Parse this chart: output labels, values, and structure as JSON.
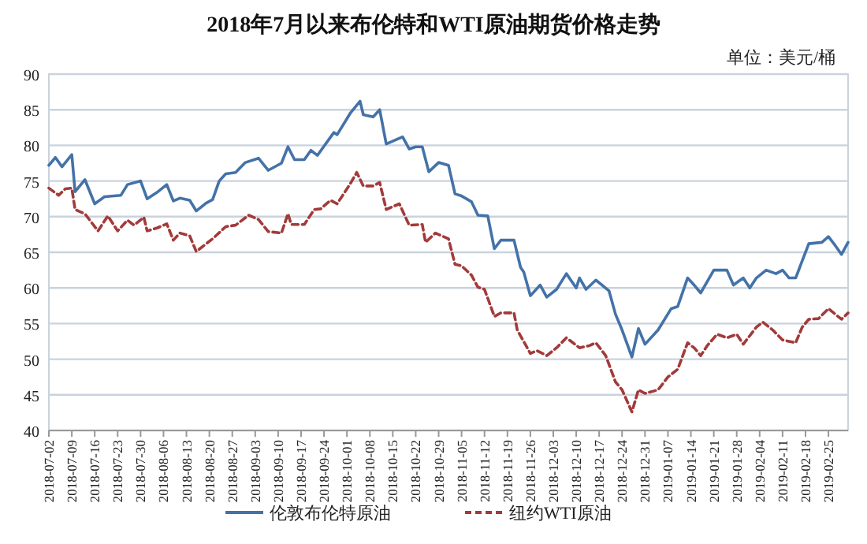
{
  "chart_data": {
    "type": "line",
    "title": "2018年7月以来布伦特和WTI原油期货价格走势",
    "ylabel": "单位：美元/桶",
    "xlim": [
      "2018-07-02",
      "2019-03-03"
    ],
    "xticks": [
      "2018-07-02",
      "2018-07-09",
      "2018-07-16",
      "2018-07-23",
      "2018-07-30",
      "2018-08-06",
      "2018-08-13",
      "2018-08-20",
      "2018-08-27",
      "2018-09-03",
      "2018-09-10",
      "2018-09-17",
      "2018-09-24",
      "2018-10-01",
      "2018-10-08",
      "2018-10-15",
      "2018-10-22",
      "2018-10-29",
      "2018-11-05",
      "2018-11-12",
      "2018-11-19",
      "2018-11-26",
      "2018-12-03",
      "2018-12-10",
      "2018-12-17",
      "2018-12-24",
      "2018-12-31",
      "2019-01-07",
      "2019-01-14",
      "2019-01-21",
      "2019-01-28",
      "2019-02-04",
      "2019-02-11",
      "2019-02-18",
      "2019-02-25"
    ],
    "ylim": [
      40,
      90
    ],
    "yticks": [
      40,
      45,
      50,
      55,
      60,
      65,
      70,
      75,
      80,
      85,
      90
    ],
    "grid": "y",
    "legend": "bottom",
    "series": [
      {
        "name": "伦敦布伦特原油",
        "color": "#4472a8",
        "line_style": "solid",
        "x": [
          "2018-07-02",
          "2018-07-04",
          "2018-07-06",
          "2018-07-09",
          "2018-07-10",
          "2018-07-13",
          "2018-07-16",
          "2018-07-19",
          "2018-07-24",
          "2018-07-26",
          "2018-07-30",
          "2018-08-01",
          "2018-08-04",
          "2018-08-07",
          "2018-08-09",
          "2018-08-11",
          "2018-08-14",
          "2018-08-16",
          "2018-08-19",
          "2018-08-21",
          "2018-08-23",
          "2018-08-25",
          "2018-08-28",
          "2018-08-31",
          "2018-09-04",
          "2018-09-07",
          "2018-09-11",
          "2018-09-13",
          "2018-09-15",
          "2018-09-18",
          "2018-09-20",
          "2018-09-22",
          "2018-09-27",
          "2018-09-28",
          "2018-10-02",
          "2018-10-05",
          "2018-10-06",
          "2018-10-09",
          "2018-10-11",
          "2018-10-13",
          "2018-10-17",
          "2018-10-18",
          "2018-10-20",
          "2018-10-22",
          "2018-10-24",
          "2018-10-26",
          "2018-10-29",
          "2018-11-01",
          "2018-11-03",
          "2018-11-05",
          "2018-11-08",
          "2018-11-10",
          "2018-11-13",
          "2018-11-15",
          "2018-11-17",
          "2018-11-21",
          "2018-11-23",
          "2018-11-24",
          "2018-11-26",
          "2018-11-29",
          "2018-12-01",
          "2018-12-04",
          "2018-12-07",
          "2018-12-10",
          "2018-12-11",
          "2018-12-13",
          "2018-12-16",
          "2018-12-20",
          "2018-12-22",
          "2018-12-24",
          "2018-12-27",
          "2018-12-29",
          "2018-12-31",
          "2019-01-04",
          "2019-01-08",
          "2019-01-10",
          "2019-01-13",
          "2019-01-15",
          "2019-01-17",
          "2019-01-19",
          "2019-01-21",
          "2019-01-25",
          "2019-01-27",
          "2019-01-30",
          "2019-02-01",
          "2019-02-03",
          "2019-02-06",
          "2019-02-09",
          "2019-02-11",
          "2019-02-13",
          "2019-02-15",
          "2019-02-19",
          "2019-02-23",
          "2019-02-25",
          "2019-02-27",
          "2019-03-01",
          "2019-03-03"
        ],
        "values": [
          77.2,
          78.3,
          77.0,
          78.7,
          73.5,
          75.2,
          71.8,
          72.8,
          73.0,
          74.5,
          75.0,
          72.5,
          73.4,
          74.5,
          72.2,
          72.6,
          72.3,
          70.8,
          71.9,
          72.4,
          75.0,
          76.0,
          76.2,
          77.6,
          78.2,
          76.5,
          77.5,
          79.8,
          78.0,
          78.0,
          79.3,
          78.6,
          81.8,
          81.5,
          84.5,
          86.2,
          84.3,
          84.0,
          85.0,
          80.2,
          81.0,
          81.2,
          79.5,
          79.8,
          79.8,
          76.3,
          77.6,
          77.2,
          73.2,
          72.9,
          72.1,
          70.2,
          70.1,
          65.5,
          66.7,
          66.7,
          62.9,
          62.2,
          58.9,
          60.4,
          58.7,
          59.8,
          62.0,
          60.0,
          61.4,
          59.8,
          61.1,
          59.6,
          56.3,
          54.1,
          50.3,
          54.3,
          52.1,
          54.1,
          57.1,
          57.4,
          61.4,
          60.4,
          59.3,
          60.9,
          62.5,
          62.5,
          60.4,
          61.4,
          60.0,
          61.4,
          62.5,
          62.0,
          62.5,
          61.4,
          61.4,
          66.2,
          66.4,
          67.2,
          66.0,
          64.7,
          66.4
        ]
      },
      {
        "name": "纽约WTI原油",
        "color": "#a33a3a",
        "line_style": "dashed",
        "x": [
          "2018-07-02",
          "2018-07-05",
          "2018-07-07",
          "2018-07-09",
          "2018-07-10",
          "2018-07-13",
          "2018-07-17",
          "2018-07-20",
          "2018-07-23",
          "2018-07-26",
          "2018-07-28",
          "2018-07-31",
          "2018-08-01",
          "2018-08-04",
          "2018-08-07",
          "2018-08-09",
          "2018-08-11",
          "2018-08-14",
          "2018-08-16",
          "2018-08-19",
          "2018-08-21",
          "2018-08-25",
          "2018-08-28",
          "2018-09-01",
          "2018-09-04",
          "2018-09-07",
          "2018-09-11",
          "2018-09-13",
          "2018-09-14",
          "2018-09-18",
          "2018-09-21",
          "2018-09-23",
          "2018-09-26",
          "2018-09-28",
          "2018-10-02",
          "2018-10-04",
          "2018-10-06",
          "2018-10-09",
          "2018-10-11",
          "2018-10-13",
          "2018-10-17",
          "2018-10-20",
          "2018-10-24",
          "2018-10-25",
          "2018-10-28",
          "2018-11-01",
          "2018-11-03",
          "2018-11-05",
          "2018-11-08",
          "2018-11-10",
          "2018-11-12",
          "2018-11-15",
          "2018-11-17",
          "2018-11-21",
          "2018-11-22",
          "2018-11-26",
          "2018-11-28",
          "2018-12-01",
          "2018-12-04",
          "2018-12-07",
          "2018-12-09",
          "2018-12-11",
          "2018-12-14",
          "2018-12-16",
          "2018-12-19",
          "2018-12-22",
          "2018-12-24",
          "2018-12-27",
          "2018-12-29",
          "2018-12-31",
          "2019-01-04",
          "2019-01-07",
          "2019-01-10",
          "2019-01-13",
          "2019-01-15",
          "2019-01-17",
          "2019-01-19",
          "2019-01-22",
          "2019-01-25",
          "2019-01-28",
          "2019-01-30",
          "2019-02-03",
          "2019-02-05",
          "2019-02-08",
          "2019-02-11",
          "2019-02-15",
          "2019-02-17",
          "2019-02-19",
          "2019-02-22",
          "2019-02-25",
          "2019-03-01",
          "2019-03-03"
        ],
        "values": [
          74.0,
          73.0,
          73.9,
          74.0,
          71.0,
          70.4,
          68.0,
          70.1,
          68.0,
          69.5,
          68.8,
          69.9,
          68.0,
          68.4,
          69.0,
          66.7,
          67.7,
          67.3,
          65.1,
          66.2,
          66.9,
          68.6,
          68.8,
          70.2,
          69.6,
          67.9,
          67.7,
          70.4,
          68.9,
          68.9,
          71.0,
          71.1,
          72.3,
          71.8,
          74.6,
          76.2,
          74.3,
          74.3,
          74.8,
          71.0,
          71.8,
          68.8,
          68.9,
          66.4,
          67.7,
          66.9,
          63.3,
          63.1,
          61.8,
          60.1,
          59.8,
          56.0,
          56.5,
          56.5,
          54.1,
          50.8,
          51.2,
          50.5,
          51.6,
          53.0,
          52.3,
          51.6,
          51.9,
          52.3,
          50.5,
          46.8,
          45.7,
          42.6,
          45.7,
          45.2,
          45.7,
          47.5,
          48.6,
          52.3,
          51.6,
          50.5,
          51.9,
          53.5,
          53.0,
          53.5,
          52.1,
          54.5,
          55.2,
          54.1,
          52.7,
          52.3,
          54.5,
          55.6,
          55.7,
          57.1,
          55.6,
          56.5
        ]
      }
    ]
  }
}
